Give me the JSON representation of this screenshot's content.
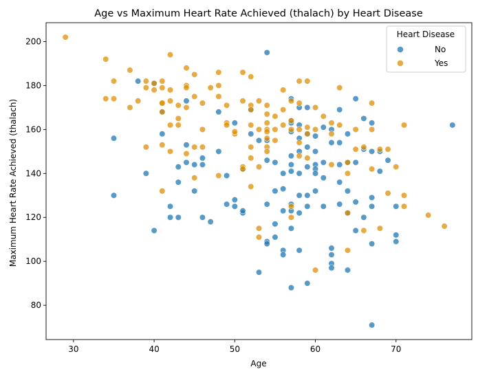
{
  "chart_data": {
    "type": "scatter",
    "title": "Age vs Maximum Heart Rate Achieved (thalach) by Heart Disease",
    "xlabel": "Age",
    "ylabel": "Maximum Heart Rate Achieved (thalach)",
    "xlim": [
      26.6,
      79.4
    ],
    "ylim": [
      64.4,
      208.6
    ],
    "xticks": [
      30,
      40,
      50,
      60,
      70
    ],
    "yticks": [
      80,
      100,
      120,
      140,
      160,
      180,
      200
    ],
    "grid": false,
    "legend": {
      "title": "Heart Disease",
      "position": "top-right"
    },
    "series": [
      {
        "name": "No",
        "color": "#1f77b4",
        "points": [
          [
            35,
            156
          ],
          [
            35,
            130
          ],
          [
            38,
            182
          ],
          [
            39,
            140
          ],
          [
            40,
            181
          ],
          [
            40,
            114
          ],
          [
            41,
            158
          ],
          [
            41,
            168
          ],
          [
            42,
            125
          ],
          [
            42,
            120
          ],
          [
            43,
            143
          ],
          [
            43,
            136
          ],
          [
            43,
            120
          ],
          [
            44,
            153
          ],
          [
            44,
            173
          ],
          [
            44,
            145
          ],
          [
            45,
            144
          ],
          [
            45,
            132
          ],
          [
            46,
            147
          ],
          [
            46,
            144
          ],
          [
            46,
            120
          ],
          [
            47,
            118
          ],
          [
            48,
            168
          ],
          [
            48,
            150
          ],
          [
            49,
            139
          ],
          [
            49,
            126
          ],
          [
            50,
            163
          ],
          [
            50,
            128
          ],
          [
            50,
            125
          ],
          [
            51,
            142
          ],
          [
            51,
            122
          ],
          [
            51,
            123
          ],
          [
            52,
            169
          ],
          [
            52,
            158
          ],
          [
            53,
            155
          ],
          [
            53,
            95
          ],
          [
            54,
            195
          ],
          [
            54,
            155
          ],
          [
            54,
            146
          ],
          [
            54,
            126
          ],
          [
            54,
            109
          ],
          [
            54,
            108
          ],
          [
            55,
            145
          ],
          [
            55,
            132
          ],
          [
            55,
            117
          ],
          [
            55,
            111
          ],
          [
            56,
            140
          ],
          [
            56,
            133
          ],
          [
            56,
            123
          ],
          [
            56,
            105
          ],
          [
            56,
            103
          ],
          [
            57,
            174
          ],
          [
            57,
            164
          ],
          [
            57,
            163
          ],
          [
            57,
            159
          ],
          [
            57,
            148
          ],
          [
            57,
            144
          ],
          [
            57,
            141
          ],
          [
            57,
            126
          ],
          [
            57,
            123
          ],
          [
            57,
            115
          ],
          [
            57,
            88
          ],
          [
            58,
            170
          ],
          [
            58,
            162
          ],
          [
            58,
            156
          ],
          [
            58,
            150
          ],
          [
            58,
            140
          ],
          [
            58,
            130
          ],
          [
            58,
            122
          ],
          [
            58,
            105
          ],
          [
            59,
            170
          ],
          [
            59,
            158
          ],
          [
            59,
            152
          ],
          [
            59,
            143
          ],
          [
            59,
            130
          ],
          [
            59,
            125
          ],
          [
            59,
            90
          ],
          [
            60,
            157
          ],
          [
            60,
            150
          ],
          [
            60,
            144
          ],
          [
            60,
            142
          ],
          [
            60,
            140
          ],
          [
            60,
            132
          ],
          [
            61,
            161
          ],
          [
            61,
            145
          ],
          [
            61,
            138
          ],
          [
            61,
            125
          ],
          [
            62,
            160
          ],
          [
            62,
            154
          ],
          [
            62,
            106
          ],
          [
            62,
            103
          ],
          [
            62,
            99
          ],
          [
            62,
            97
          ],
          [
            63,
            169
          ],
          [
            63,
            154
          ],
          [
            63,
            144
          ],
          [
            63,
            136
          ],
          [
            63,
            126
          ],
          [
            64,
            158
          ],
          [
            64,
            145
          ],
          [
            64,
            132
          ],
          [
            64,
            122
          ],
          [
            64,
            96
          ],
          [
            65,
            174
          ],
          [
            65,
            145
          ],
          [
            65,
            127
          ],
          [
            65,
            114
          ],
          [
            66,
            165
          ],
          [
            66,
            151
          ],
          [
            66,
            120
          ],
          [
            67,
            163
          ],
          [
            67,
            150
          ],
          [
            67,
            129
          ],
          [
            67,
            125
          ],
          [
            67,
            108
          ],
          [
            67,
            71
          ],
          [
            68,
            141
          ],
          [
            68,
            150
          ],
          [
            69,
            146
          ],
          [
            70,
            125
          ],
          [
            70,
            112
          ],
          [
            70,
            109
          ],
          [
            77,
            162
          ]
        ]
      },
      {
        "name": "Yes",
        "color": "#de8f05",
        "points": [
          [
            29,
            202
          ],
          [
            34,
            192
          ],
          [
            34,
            174
          ],
          [
            35,
            182
          ],
          [
            35,
            174
          ],
          [
            37,
            187
          ],
          [
            37,
            170
          ],
          [
            38,
            173
          ],
          [
            39,
            182
          ],
          [
            39,
            179
          ],
          [
            39,
            152
          ],
          [
            40,
            178
          ],
          [
            40,
            181
          ],
          [
            41,
            182
          ],
          [
            41,
            179
          ],
          [
            41,
            172
          ],
          [
            41,
            168
          ],
          [
            41,
            172
          ],
          [
            41,
            153
          ],
          [
            41,
            132
          ],
          [
            42,
            194
          ],
          [
            42,
            178
          ],
          [
            42,
            173
          ],
          [
            42,
            162
          ],
          [
            42,
            150
          ],
          [
            43,
            171
          ],
          [
            43,
            165
          ],
          [
            43,
            162
          ],
          [
            44,
            188
          ],
          [
            44,
            180
          ],
          [
            44,
            179
          ],
          [
            44,
            170
          ],
          [
            44,
            149
          ],
          [
            45,
            185
          ],
          [
            45,
            175
          ],
          [
            45,
            152
          ],
          [
            45,
            138
          ],
          [
            46,
            172
          ],
          [
            46,
            160
          ],
          [
            46,
            152
          ],
          [
            47,
            179
          ],
          [
            48,
            186
          ],
          [
            48,
            180
          ],
          [
            48,
            175
          ],
          [
            48,
            139
          ],
          [
            49,
            171
          ],
          [
            49,
            163
          ],
          [
            49,
            162
          ],
          [
            50,
            158
          ],
          [
            50,
            159
          ],
          [
            51,
            186
          ],
          [
            51,
            173
          ],
          [
            51,
            143
          ],
          [
            51,
            142
          ],
          [
            52,
            184
          ],
          [
            52,
            171
          ],
          [
            52,
            162
          ],
          [
            52,
            152
          ],
          [
            52,
            147
          ],
          [
            52,
            134
          ],
          [
            52,
            169
          ],
          [
            53,
            173
          ],
          [
            53,
            160
          ],
          [
            53,
            143
          ],
          [
            53,
            115
          ],
          [
            53,
            111
          ],
          [
            54,
            171
          ],
          [
            54,
            167
          ],
          [
            54,
            163
          ],
          [
            54,
            160
          ],
          [
            54,
            159
          ],
          [
            54,
            156
          ],
          [
            54,
            152
          ],
          [
            54,
            150
          ],
          [
            55,
            166
          ],
          [
            55,
            160
          ],
          [
            55,
            155
          ],
          [
            56,
            178
          ],
          [
            56,
            169
          ],
          [
            56,
            162
          ],
          [
            57,
            173
          ],
          [
            57,
            164
          ],
          [
            57,
            160
          ],
          [
            57,
            125
          ],
          [
            57,
            120
          ],
          [
            58,
            182
          ],
          [
            58,
            172
          ],
          [
            58,
            160
          ],
          [
            58,
            154
          ],
          [
            58,
            148
          ],
          [
            59,
            182
          ],
          [
            59,
            161
          ],
          [
            59,
            158
          ],
          [
            59,
            147
          ],
          [
            60,
            170
          ],
          [
            60,
            160
          ],
          [
            60,
            96
          ],
          [
            61,
            166
          ],
          [
            62,
            163
          ],
          [
            62,
            144
          ],
          [
            62,
            158
          ],
          [
            63,
            179
          ],
          [
            63,
            162
          ],
          [
            64,
            145
          ],
          [
            64,
            140
          ],
          [
            64,
            122
          ],
          [
            64,
            105
          ],
          [
            65,
            160
          ],
          [
            65,
            151
          ],
          [
            66,
            152
          ],
          [
            66,
            114
          ],
          [
            67,
            172
          ],
          [
            67,
            160
          ],
          [
            67,
            142
          ],
          [
            68,
            115
          ],
          [
            68,
            151
          ],
          [
            69,
            151
          ],
          [
            69,
            131
          ],
          [
            70,
            143
          ],
          [
            71,
            162
          ],
          [
            71,
            130
          ],
          [
            71,
            125
          ],
          [
            74,
            121
          ],
          [
            76,
            116
          ]
        ]
      }
    ]
  }
}
